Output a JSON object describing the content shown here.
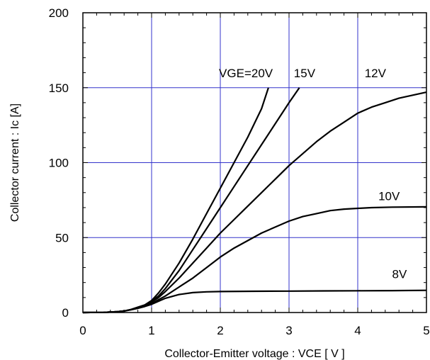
{
  "chart_data": {
    "type": "line",
    "xlabel": "Collector-Emitter voltage : VCE [ V ]",
    "ylabel": "Collector current : Ic [A]",
    "xlim": [
      0,
      5
    ],
    "ylim": [
      0,
      200
    ],
    "x_ticks": [
      "0",
      "1",
      "2",
      "3",
      "4",
      "5"
    ],
    "y_ticks": [
      "0",
      "50",
      "100",
      "150",
      "200"
    ],
    "grid": true,
    "colors": {
      "grid": "#3333cc",
      "line": "#000000",
      "frame": "#000000"
    },
    "series": [
      {
        "name": "VGE=20V",
        "x": [
          0,
          0.3,
          0.5,
          0.6,
          0.7,
          0.8,
          0.9,
          1.0,
          1.1,
          1.2,
          1.4,
          1.6,
          1.8,
          2.0,
          2.2,
          2.4,
          2.6,
          2.7
        ],
        "y": [
          0,
          0.1,
          0.5,
          1,
          2,
          3.5,
          5,
          8,
          13,
          19,
          33,
          49,
          66,
          83,
          100,
          117,
          136,
          150
        ]
      },
      {
        "name": "15V",
        "x": [
          0,
          0.3,
          0.5,
          0.6,
          0.7,
          0.8,
          0.9,
          1.0,
          1.1,
          1.2,
          1.4,
          1.6,
          1.8,
          2.0,
          2.2,
          2.4,
          2.6,
          2.8,
          3.0,
          3.15
        ],
        "y": [
          0,
          0.1,
          0.5,
          1,
          2,
          3.5,
          5,
          7.5,
          11,
          16,
          28,
          42,
          56,
          70,
          84,
          98,
          112,
          126,
          140,
          150
        ]
      },
      {
        "name": "12V",
        "x": [
          0,
          0.3,
          0.5,
          0.6,
          0.7,
          0.8,
          0.9,
          1.0,
          1.1,
          1.2,
          1.4,
          1.6,
          1.8,
          2.0,
          2.2,
          2.4,
          2.6,
          2.8,
          3.0,
          3.2,
          3.4,
          3.6,
          3.8,
          4.0,
          4.2,
          4.4,
          4.6,
          4.8,
          5.0
        ],
        "y": [
          0,
          0.1,
          0.5,
          1,
          2,
          3.3,
          4.8,
          7,
          10,
          14,
          23,
          33,
          43,
          53,
          62,
          71,
          80,
          89,
          98,
          106,
          114,
          121,
          127,
          133,
          137,
          140,
          143,
          145,
          147
        ]
      },
      {
        "name": "10V",
        "x": [
          0,
          0.3,
          0.5,
          0.6,
          0.7,
          0.8,
          0.9,
          1.0,
          1.1,
          1.2,
          1.4,
          1.6,
          1.8,
          2.0,
          2.2,
          2.4,
          2.6,
          2.8,
          3.0,
          3.2,
          3.4,
          3.6,
          3.8,
          4.0,
          4.2,
          4.5,
          5.0
        ],
        "y": [
          0,
          0.1,
          0.5,
          1,
          2,
          3,
          4.5,
          6,
          8.5,
          11,
          17,
          23,
          30,
          37,
          43,
          48,
          53,
          57,
          61,
          64,
          66,
          68,
          69,
          69.5,
          70,
          70.3,
          70.5
        ]
      },
      {
        "name": "8V",
        "x": [
          0,
          0.3,
          0.5,
          0.6,
          0.7,
          0.8,
          0.9,
          1.0,
          1.1,
          1.2,
          1.4,
          1.6,
          1.8,
          2.0,
          2.5,
          3.0,
          3.5,
          4.0,
          4.5,
          5.0
        ],
        "y": [
          0,
          0.1,
          0.5,
          1,
          1.8,
          2.8,
          4,
          5.5,
          7.5,
          9.5,
          12,
          13.3,
          13.8,
          14,
          14.2,
          14.3,
          14.4,
          14.5,
          14.6,
          14.8
        ]
      }
    ],
    "curve_labels": [
      {
        "text": "VGE=20V",
        "x": 1.98,
        "y": 157
      },
      {
        "text": "15V",
        "x": 3.07,
        "y": 157
      },
      {
        "text": "12V",
        "x": 4.1,
        "y": 157
      },
      {
        "text": "10V",
        "x": 4.3,
        "y": 75
      },
      {
        "text": "8V",
        "x": 4.5,
        "y": 23
      }
    ]
  }
}
